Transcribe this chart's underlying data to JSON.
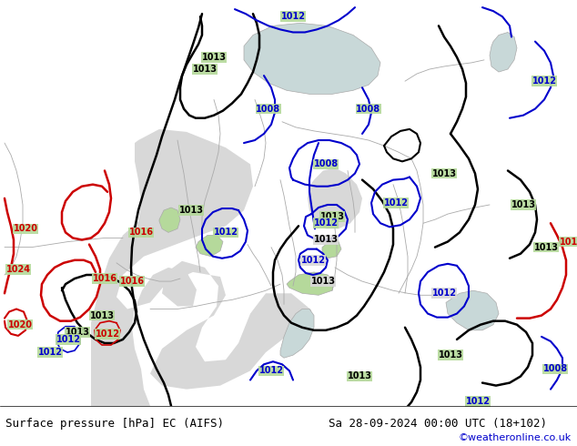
{
  "title_left": "Surface pressure [hPa] EC (AIFS)",
  "title_right": "Sa 28-09-2024 00:00 UTC (18+102)",
  "credit": "©weatheronline.co.uk",
  "land_color": "#b5d99b",
  "sea_color": "#d8d8d8",
  "small_sea_color": "#b8d8e8",
  "border_color": "#aaaaaa",
  "bottom_bar_color": "#ffffff",
  "black_isobar_color": "#000000",
  "blue_isobar_color": "#0000cc",
  "red_isobar_color": "#cc0000",
  "fig_width": 6.34,
  "fig_height": 4.9,
  "dpi": 100
}
